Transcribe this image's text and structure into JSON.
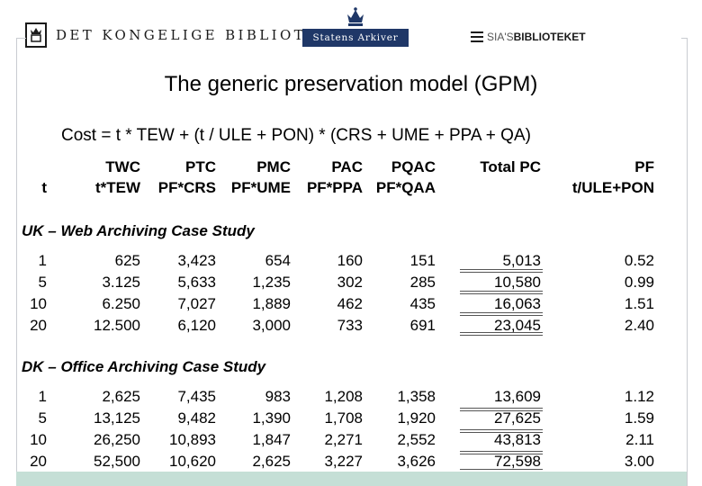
{
  "header": {
    "logo_dkb_text": "DET KONGELIGE BIBLIOTEK",
    "logo_sa_text": "Statens Arkiver",
    "logo_sia_light": "SIA'S",
    "logo_sia_bold": "BIBLIOTEKET"
  },
  "title": "The generic preservation model (GPM)",
  "formula": "Cost = t * TEW + (t / ULE + PON) * (CRS + UME + PPA + QA)",
  "table": {
    "columns": [
      {
        "label": "",
        "formula": "t"
      },
      {
        "label": "TWC",
        "formula": "t*TEW"
      },
      {
        "label": "PTC",
        "formula": "PF*CRS"
      },
      {
        "label": "PMC",
        "formula": "PF*UME"
      },
      {
        "label": "PAC",
        "formula": "PF*PPA"
      },
      {
        "label": "PQAC",
        "formula": "PF*QAA"
      },
      {
        "label": "Total PC",
        "formula": ""
      },
      {
        "label": "PF",
        "formula": "t/ULE+PON"
      }
    ],
    "sections": [
      {
        "title": "UK – Web Archiving Case Study",
        "rows": [
          [
            "1",
            "625",
            "3,423",
            "654",
            "160",
            "151",
            "5,013",
            "0.52"
          ],
          [
            "5",
            "3.125",
            "5,633",
            "1,235",
            "302",
            "285",
            "10,580",
            "0.99"
          ],
          [
            "10",
            "6.250",
            "7,027",
            "1,889",
            "462",
            "435",
            "16,063",
            "1.51"
          ],
          [
            "20",
            "12.500",
            "6,120",
            "3,000",
            "733",
            "691",
            "23,045",
            "2.40"
          ]
        ]
      },
      {
        "title": "DK – Office Archiving Case Study",
        "rows": [
          [
            "1",
            "2,625",
            "7,435",
            "983",
            "1,208",
            "1,358",
            "13,609",
            "1.12"
          ],
          [
            "5",
            "13,125",
            "9,482",
            "1,390",
            "1,708",
            "1,920",
            "27,625",
            "1.59"
          ],
          [
            "10",
            "26,250",
            "10,893",
            "1,847",
            "2,271",
            "2,552",
            "43,813",
            "2.11"
          ],
          [
            "20",
            "52,500",
            "10,620",
            "2,625",
            "3,227",
            "3,626",
            "72,598",
            "3.00"
          ]
        ]
      }
    ]
  }
}
